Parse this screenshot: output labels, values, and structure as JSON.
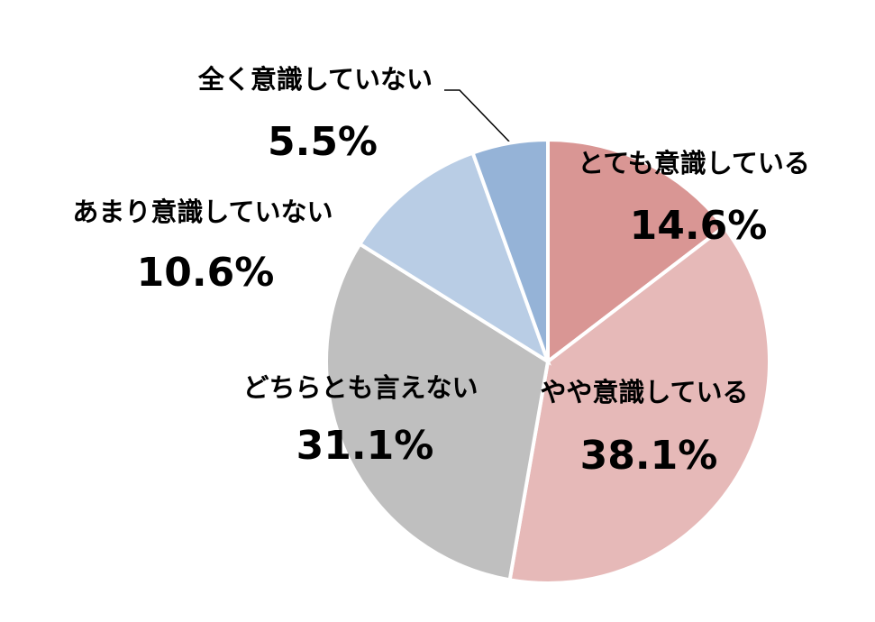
{
  "chart_data": {
    "type": "pie",
    "categories": [
      "とても意識している",
      "やや意識している",
      "どちらとも言えない",
      "あまり意識していない",
      "全く意識していない"
    ],
    "values": [
      14.6,
      38.1,
      31.1,
      10.6,
      5.5
    ],
    "value_labels": [
      "14.6%",
      "38.1%",
      "31.1%",
      "10.6%",
      "5.5%"
    ],
    "colors": [
      "#d99694",
      "#e6b9b8",
      "#bfbfbf",
      "#b9cde5",
      "#95b3d7"
    ]
  }
}
